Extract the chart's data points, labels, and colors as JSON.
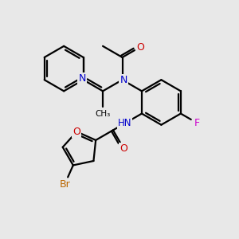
{
  "bg_color": "#e8e8e8",
  "bond_color": "#000000",
  "bond_width": 1.6,
  "N_color": "#0000cc",
  "O_color": "#cc0000",
  "F_color": "#cc00cc",
  "Br_color": "#bb6600",
  "fig_width": 3.0,
  "fig_height": 3.0,
  "dpi": 100,
  "xlim": [
    0,
    10
  ],
  "ylim": [
    0,
    10
  ]
}
